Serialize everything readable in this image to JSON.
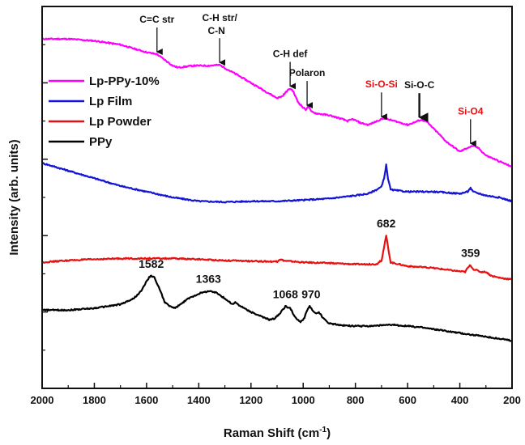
{
  "chart_data": {
    "type": "line",
    "xlabel": "Raman Shift (cm",
    "xlabel_sup": "-1",
    "xlabel_close": ")",
    "ylabel": "Intensity (arb. units)",
    "xlim": [
      2000,
      200
    ],
    "ylim": [
      0,
      100
    ],
    "x_ticks": [
      "2000",
      "1800",
      "1600",
      "1400",
      "1200",
      "1000",
      "800",
      "600",
      "400",
      "200"
    ],
    "legend_position": "top-left",
    "series": [
      {
        "name": "Lp-PPy-10%",
        "color": "#ff00ff",
        "points": [
          [
            2000,
            91.5
          ],
          [
            1900,
            91.5
          ],
          [
            1800,
            91.0
          ],
          [
            1700,
            90.0
          ],
          [
            1600,
            88.0
          ],
          [
            1560,
            87.5
          ],
          [
            1530,
            86.0
          ],
          [
            1500,
            84.5
          ],
          [
            1480,
            84.0
          ],
          [
            1420,
            84.5
          ],
          [
            1360,
            84.5
          ],
          [
            1320,
            84.7
          ],
          [
            1290,
            83.5
          ],
          [
            1250,
            82.0
          ],
          [
            1200,
            80.0
          ],
          [
            1150,
            78.0
          ],
          [
            1100,
            76.0
          ],
          [
            1080,
            76.5
          ],
          [
            1060,
            78.0
          ],
          [
            1050,
            78.5
          ],
          [
            1040,
            78.0
          ],
          [
            1020,
            75.0
          ],
          [
            1000,
            73.5
          ],
          [
            990,
            73.0
          ],
          [
            980,
            74.0
          ],
          [
            970,
            72.5
          ],
          [
            950,
            72.0
          ],
          [
            900,
            71.5
          ],
          [
            850,
            70.5
          ],
          [
            830,
            70.0
          ],
          [
            810,
            70.5
          ],
          [
            780,
            69.5
          ],
          [
            750,
            69.0
          ],
          [
            700,
            70.5
          ],
          [
            690,
            70.7
          ],
          [
            650,
            70.0
          ],
          [
            600,
            69.0
          ],
          [
            580,
            69.5
          ],
          [
            550,
            70.3
          ],
          [
            530,
            70.0
          ],
          [
            500,
            68.0
          ],
          [
            450,
            64.5
          ],
          [
            400,
            62.0
          ],
          [
            370,
            63.0
          ],
          [
            350,
            63.5
          ],
          [
            330,
            63.0
          ],
          [
            300,
            61.0
          ],
          [
            250,
            59.5
          ],
          [
            200,
            58.0
          ]
        ]
      },
      {
        "name": "Lp Film",
        "color": "#1515d6",
        "points": [
          [
            2000,
            59.0
          ],
          [
            1950,
            58.0
          ],
          [
            1900,
            57.0
          ],
          [
            1850,
            56.0
          ],
          [
            1800,
            55.0
          ],
          [
            1700,
            53.0
          ],
          [
            1600,
            51.5
          ],
          [
            1500,
            50.0
          ],
          [
            1400,
            49.0
          ],
          [
            1300,
            48.8
          ],
          [
            1200,
            49.0
          ],
          [
            1100,
            49.0
          ],
          [
            1000,
            49.3
          ],
          [
            900,
            49.7
          ],
          [
            800,
            50.5
          ],
          [
            750,
            51.0
          ],
          [
            720,
            52.0
          ],
          [
            700,
            52.8
          ],
          [
            690,
            55.0
          ],
          [
            682,
            58.5
          ],
          [
            675,
            55.0
          ],
          [
            665,
            52.0
          ],
          [
            640,
            51.8
          ],
          [
            600,
            51.5
          ],
          [
            500,
            51.5
          ],
          [
            400,
            51.0
          ],
          [
            370,
            51.5
          ],
          [
            359,
            52.5
          ],
          [
            350,
            51.5
          ],
          [
            300,
            50.5
          ],
          [
            250,
            50.0
          ],
          [
            200,
            49.0
          ]
        ]
      },
      {
        "name": "Lp Powder",
        "color": "#e81010",
        "points": [
          [
            2000,
            33.0
          ],
          [
            1900,
            33.5
          ],
          [
            1800,
            33.8
          ],
          [
            1700,
            34.0
          ],
          [
            1600,
            34.0
          ],
          [
            1500,
            34.0
          ],
          [
            1400,
            33.8
          ],
          [
            1300,
            33.5
          ],
          [
            1200,
            33.3
          ],
          [
            1100,
            33.2
          ],
          [
            1090,
            33.8
          ],
          [
            1070,
            33.4
          ],
          [
            1000,
            33.0
          ],
          [
            900,
            32.8
          ],
          [
            800,
            32.5
          ],
          [
            720,
            32.5
          ],
          [
            700,
            33.5
          ],
          [
            690,
            37.0
          ],
          [
            682,
            40.0
          ],
          [
            675,
            37.0
          ],
          [
            665,
            33.0
          ],
          [
            600,
            32.0
          ],
          [
            500,
            31.5
          ],
          [
            420,
            30.8
          ],
          [
            380,
            30.5
          ],
          [
            370,
            31.5
          ],
          [
            359,
            32.3
          ],
          [
            350,
            31.3
          ],
          [
            320,
            30.5
          ],
          [
            300,
            30.5
          ],
          [
            280,
            29.5
          ],
          [
            250,
            29.0
          ],
          [
            200,
            28.5
          ]
        ]
      },
      {
        "name": "PPy",
        "color": "#000000",
        "points": [
          [
            2000,
            20.5
          ],
          [
            1900,
            20.5
          ],
          [
            1800,
            21.0
          ],
          [
            1750,
            21.5
          ],
          [
            1700,
            22.0
          ],
          [
            1650,
            23.5
          ],
          [
            1620,
            25.5
          ],
          [
            1600,
            28.0
          ],
          [
            1590,
            29.0
          ],
          [
            1582,
            29.5
          ],
          [
            1570,
            29.0
          ],
          [
            1550,
            26.0
          ],
          [
            1530,
            22.5
          ],
          [
            1510,
            21.5
          ],
          [
            1490,
            21.0
          ],
          [
            1470,
            22.0
          ],
          [
            1440,
            23.5
          ],
          [
            1400,
            24.8
          ],
          [
            1363,
            25.5
          ],
          [
            1330,
            25.0
          ],
          [
            1300,
            23.5
          ],
          [
            1270,
            22.0
          ],
          [
            1260,
            22.5
          ],
          [
            1240,
            21.5
          ],
          [
            1200,
            20.0
          ],
          [
            1150,
            18.5
          ],
          [
            1130,
            18.0
          ],
          [
            1110,
            18.3
          ],
          [
            1090,
            19.5
          ],
          [
            1068,
            21.5
          ],
          [
            1050,
            21.0
          ],
          [
            1030,
            18.5
          ],
          [
            1010,
            17.3
          ],
          [
            995,
            18.5
          ],
          [
            985,
            20.5
          ],
          [
            975,
            21.5
          ],
          [
            960,
            20.0
          ],
          [
            950,
            19.5
          ],
          [
            940,
            20.0
          ],
          [
            925,
            18.5
          ],
          [
            900,
            17.0
          ],
          [
            850,
            16.5
          ],
          [
            800,
            16.3
          ],
          [
            750,
            16.3
          ],
          [
            700,
            16.5
          ],
          [
            650,
            16.6
          ],
          [
            600,
            16.3
          ],
          [
            550,
            16.0
          ],
          [
            500,
            15.5
          ],
          [
            450,
            15.0
          ],
          [
            400,
            14.5
          ],
          [
            350,
            14.0
          ],
          [
            300,
            13.5
          ],
          [
            250,
            13.0
          ],
          [
            200,
            12.5
          ]
        ]
      }
    ],
    "annotations": [
      {
        "label": "C=C str",
        "x": 1560,
        "y": 87.5,
        "color": "#111111",
        "bold": false
      },
      {
        "label": "C-H str/",
        "label2": "C-N",
        "x": 1320,
        "y": 84.7,
        "color": "#111111",
        "bold": false
      },
      {
        "label": "C-H def",
        "x": 1050,
        "y": 78.5,
        "color": "#111111",
        "bold": false
      },
      {
        "label": "Polaron",
        "x": 985,
        "y": 73.5,
        "color": "#111111",
        "bold": false
      },
      {
        "label": "Si-O-Si",
        "x": 700,
        "y": 70.5,
        "color": "#e81010",
        "bold": false
      },
      {
        "label": "Si-O-C",
        "x": 555,
        "y": 70.3,
        "color": "#111111",
        "bold": true
      },
      {
        "label": "Si-O4",
        "x": 359,
        "y": 63.5,
        "color": "#e81010",
        "bold": false
      }
    ],
    "peak_labels": [
      {
        "label": "1582",
        "x": 1582,
        "y": 29.5
      },
      {
        "label": "1363",
        "x": 1363,
        "y": 25.5
      },
      {
        "label": "1068",
        "x": 1068,
        "y": 21.5
      },
      {
        "label": "970",
        "x": 970,
        "y": 21.5
      },
      {
        "label": "682",
        "x": 682,
        "y": 40.0
      },
      {
        "label": "359",
        "x": 359,
        "y": 32.3
      }
    ]
  }
}
